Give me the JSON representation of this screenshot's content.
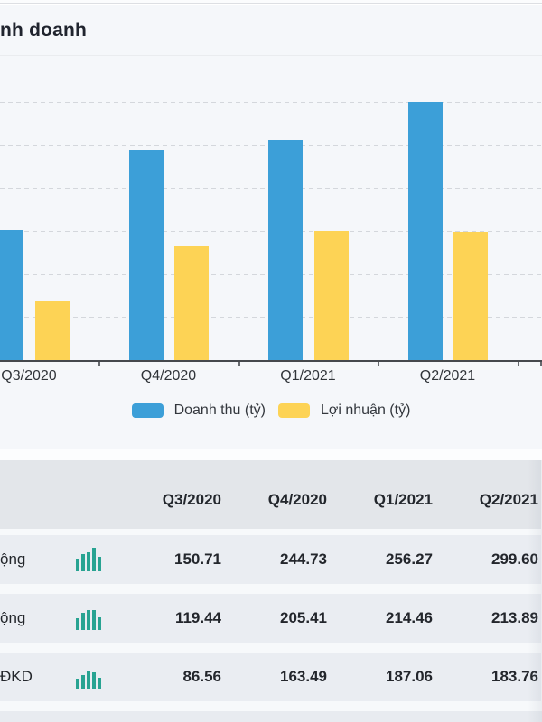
{
  "header": {
    "title": "nh doanh"
  },
  "chart_data": {
    "type": "bar",
    "title": "nh doanh",
    "categories": [
      "Q3/2020",
      "Q4/2020",
      "Q1/2021",
      "Q2/2021"
    ],
    "series": [
      {
        "name": "Doanh thu (tỷ)",
        "color": "#3c9fd8",
        "values": [
          150.71,
          244.73,
          256.27,
          299.6
        ]
      },
      {
        "name": "Lợi nhuận (tỷ)",
        "color": "#fdd355",
        "values": [
          69,
          132,
          150,
          149
        ]
      }
    ],
    "xlabel": "",
    "ylabel": "",
    "ylim": [
      0,
      340
    ],
    "gridline_step": 50,
    "grid": "horizontal-dashed",
    "legend_position": "bottom"
  },
  "table": {
    "columns": [
      "Q3/2020",
      "Q4/2020",
      "Q1/2021",
      "Q2/2021"
    ],
    "sparkline_color": "#28a392",
    "rows": [
      {
        "label": "ộng",
        "sparkline": [
          14,
          19,
          21,
          26,
          16
        ],
        "values": [
          "150.71",
          "244.73",
          "256.27",
          "299.60"
        ]
      },
      {
        "label": "ộng",
        "sparkline": [
          13,
          19,
          22,
          22,
          14
        ],
        "values": [
          "119.44",
          "205.41",
          "214.46",
          "213.89"
        ]
      },
      {
        "label": "ĐKD",
        "sparkline": [
          11,
          15,
          20,
          18,
          12
        ],
        "values": [
          "86.56",
          "163.49",
          "187.06",
          "183.76"
        ]
      }
    ]
  }
}
